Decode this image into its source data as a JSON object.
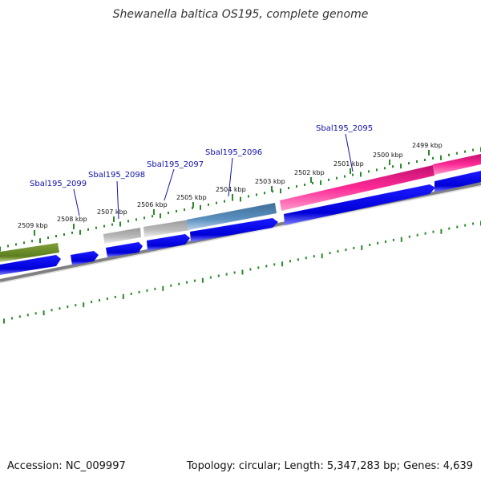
{
  "title": "Shewanella baltica OS195, complete genome",
  "footer": {
    "accession": "Accession: NC_009997",
    "summary": "Topology: circular; Length: 5,347,283 bp; Genes: 4,639"
  },
  "ticks": [
    "2509 kbp",
    "2508 kbp",
    "2507 kbp",
    "2506 kbp",
    "2505 kbp",
    "2504 kbp",
    "2503 kbp",
    "2502 kbp",
    "2501 kbp",
    "2500 kbp",
    "2499 kbp"
  ],
  "gene_labels": [
    "Sbal195_2099",
    "Sbal195_2098",
    "Sbal195_2097",
    "Sbal195_2096",
    "Sbal195_2095"
  ],
  "colors": {
    "ruler": "#2a8a2a",
    "cds_blue": "#0a0ae6",
    "backbone": "#808080",
    "feature_green": "#6e8e2a",
    "feature_gray": "#b4b4b4",
    "feature_steel": "#4a7fad",
    "feature_pink": "#ee1a8a",
    "label": "#1111aa"
  }
}
